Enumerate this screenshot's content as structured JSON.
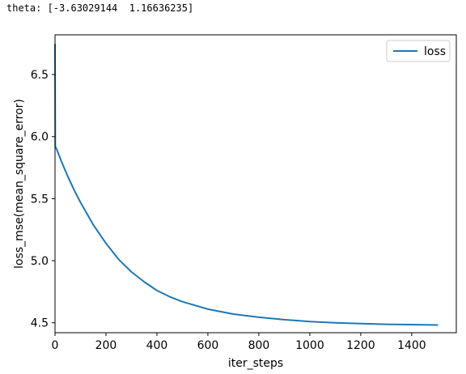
{
  "console": {
    "output": "theta: [-3.63029144  1.16636235]"
  },
  "chart_data": {
    "type": "line",
    "title": "",
    "xlabel": "iter_steps",
    "ylabel": "loss_mse(mean_square_error)",
    "xlim": [
      0,
      1575
    ],
    "ylim": [
      4.42,
      6.82
    ],
    "xticks": [
      0,
      200,
      400,
      600,
      800,
      1000,
      1200,
      1400
    ],
    "xtick_labels": [
      "0",
      "200",
      "400",
      "600",
      "800",
      "1000",
      "1200",
      "1400"
    ],
    "yticks": [
      4.5,
      5.0,
      5.5,
      6.0,
      6.5
    ],
    "ytick_labels": [
      "4.5",
      "5.0",
      "5.5",
      "6.0",
      "6.5"
    ],
    "grid": false,
    "legend": {
      "placement": "top-right"
    },
    "series": [
      {
        "name": "loss",
        "color": "#1f77b4",
        "x": [
          0,
          1,
          5,
          10,
          25,
          50,
          75,
          100,
          150,
          200,
          250,
          300,
          350,
          400,
          450,
          500,
          600,
          700,
          800,
          900,
          1000,
          1100,
          1200,
          1300,
          1400,
          1500
        ],
        "y": [
          6.74,
          5.92,
          5.905,
          5.88,
          5.8,
          5.68,
          5.57,
          5.47,
          5.29,
          5.14,
          5.01,
          4.91,
          4.83,
          4.76,
          4.71,
          4.67,
          4.61,
          4.57,
          4.545,
          4.525,
          4.51,
          4.5,
          4.493,
          4.488,
          4.485,
          4.482
        ]
      }
    ]
  }
}
